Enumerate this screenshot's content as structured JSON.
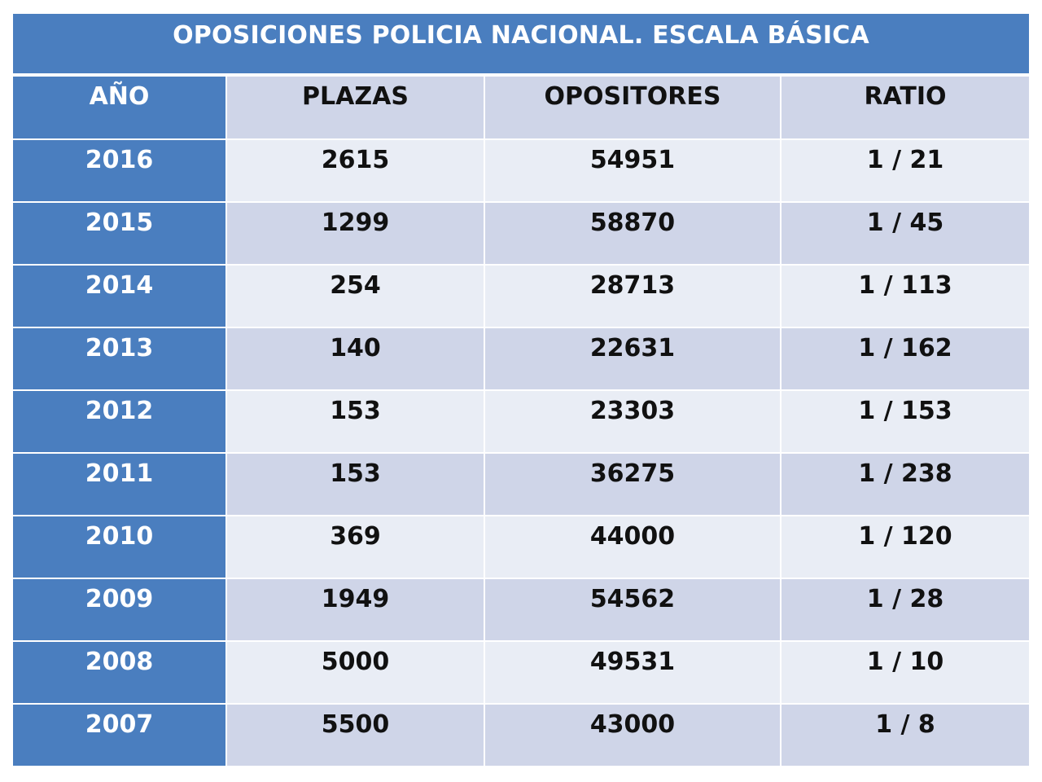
{
  "title": "OPOSICIONES POLICIA NACIONAL.  ESCALA BÁSICA",
  "headers": [
    "AÑO",
    "PLAZAS",
    "OPOSITORES",
    "RATIO"
  ],
  "rows": [
    {
      "year": "2016",
      "plazas": "2615",
      "opositores": "54951",
      "ratio": "1 / 21"
    },
    {
      "year": "2015",
      "plazas": "1299",
      "opositores": "58870",
      "ratio": "1 / 45"
    },
    {
      "year": "2014",
      "plazas": "254",
      "opositores": "28713",
      "ratio": "1 / 113"
    },
    {
      "year": "2013",
      "plazas": "140",
      "opositores": "22631",
      "ratio": "1 / 162"
    },
    {
      "year": "2012",
      "plazas": "153",
      "opositores": "23303",
      "ratio": "1 / 153"
    },
    {
      "year": "2011",
      "plazas": "153",
      "opositores": "36275",
      "ratio": "1 / 238"
    },
    {
      "year": "2010",
      "plazas": "369",
      "opositores": "44000",
      "ratio": "1 / 120"
    },
    {
      "year": "2009",
      "plazas": "1949",
      "opositores": "54562",
      "ratio": "1 / 28"
    },
    {
      "year": "2008",
      "plazas": "5000",
      "opositores": "49531",
      "ratio": "1 / 10"
    },
    {
      "year": "2007",
      "plazas": "5500",
      "opositores": "43000",
      "ratio": "1 / 8"
    }
  ],
  "colors": {
    "accent_blue": "#4a7ebf",
    "row_light": "#e9edf5",
    "row_dark": "#cfd5e8"
  }
}
